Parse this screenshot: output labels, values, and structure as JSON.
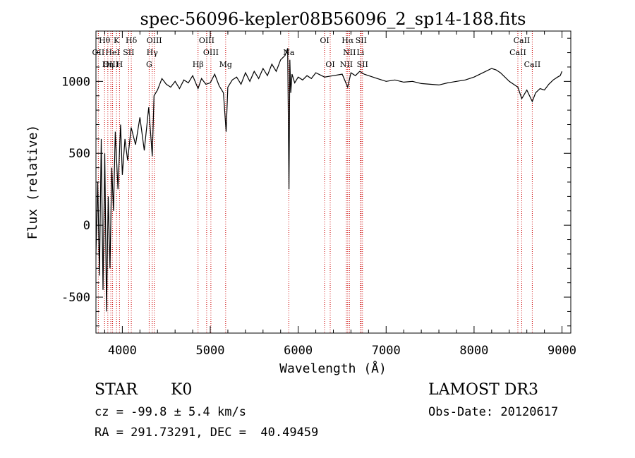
{
  "chart_data": {
    "type": "line",
    "title": "spec-56096-kepler08B56096_2_sp14-188.fits",
    "xlabel": "Wavelength (Å)",
    "ylabel": "Flux (relative)",
    "xlim": [
      3700,
      9100
    ],
    "ylim": [
      -750,
      1350
    ],
    "x_ticks": [
      4000,
      5000,
      6000,
      7000,
      8000,
      9000
    ],
    "x_tick_labels": [
      "4000",
      "5000",
      "6000",
      "7000",
      "8000",
      "9000"
    ],
    "y_ticks": [
      -500,
      0,
      500,
      1000
    ],
    "y_tick_labels": [
      "-500",
      "0",
      "500",
      "1000"
    ],
    "series": [
      {
        "name": "flux",
        "x": [
          3700,
          3720,
          3740,
          3760,
          3780,
          3800,
          3820,
          3840,
          3860,
          3880,
          3900,
          3920,
          3950,
          3980,
          4000,
          4030,
          4060,
          4100,
          4150,
          4200,
          4250,
          4300,
          4340,
          4360,
          4400,
          4450,
          4500,
          4550,
          4600,
          4650,
          4700,
          4750,
          4800,
          4861,
          4900,
          4950,
          5000,
          5050,
          5100,
          5150,
          5180,
          5200,
          5250,
          5300,
          5350,
          5400,
          5450,
          5500,
          5550,
          5600,
          5650,
          5700,
          5750,
          5800,
          5850,
          5880,
          5895,
          5905,
          5915,
          5930,
          5960,
          6000,
          6050,
          6100,
          6150,
          6200,
          6300,
          6400,
          6500,
          6563,
          6600,
          6650,
          6700,
          6750,
          6800,
          6900,
          7000,
          7100,
          7200,
          7300,
          7400,
          7500,
          7600,
          7700,
          7800,
          7900,
          8000,
          8100,
          8200,
          8250,
          8300,
          8400,
          8498,
          8542,
          8600,
          8662,
          8700,
          8750,
          8800,
          8850,
          8900,
          8950,
          8980,
          9000
        ],
        "y": [
          -200,
          300,
          -350,
          600,
          -450,
          500,
          -600,
          200,
          -300,
          400,
          100,
          650,
          250,
          700,
          350,
          600,
          450,
          680,
          560,
          750,
          520,
          820,
          480,
          900,
          940,
          1020,
          980,
          960,
          1000,
          950,
          1010,
          990,
          1040,
          950,
          1020,
          980,
          990,
          1050,
          970,
          920,
          650,
          960,
          1010,
          1030,
          980,
          1060,
          1000,
          1070,
          1020,
          1090,
          1040,
          1120,
          1070,
          1150,
          1180,
          1230,
          250,
          1150,
          920,
          1050,
          990,
          1030,
          1010,
          1040,
          1020,
          1060,
          1030,
          1040,
          1050,
          960,
          1060,
          1040,
          1070,
          1050,
          1040,
          1020,
          1000,
          1010,
          995,
          1000,
          985,
          980,
          975,
          990,
          1000,
          1010,
          1030,
          1060,
          1090,
          1080,
          1060,
          1000,
          960,
          880,
          940,
          860,
          920,
          950,
          940,
          980,
          1010,
          1030,
          1040,
          1070
        ]
      }
    ],
    "lines": [
      {
        "name": "Hθ",
        "x": 3798
      },
      {
        "name": "OII",
        "x": 3727
      },
      {
        "name": "OIII",
        "x": 3869
      },
      {
        "name": "Hη",
        "x": 3835
      },
      {
        "name": "K",
        "x": 3934
      },
      {
        "name": "H",
        "x": 3968
      },
      {
        "name": "HeI",
        "x": 3889
      },
      {
        "name": "SII",
        "x": 4072
      },
      {
        "name": "Hδ",
        "x": 4102
      },
      {
        "name": "OIII",
        "x": 4363
      },
      {
        "name": "Hγ",
        "x": 4340
      },
      {
        "name": "G",
        "x": 4305
      },
      {
        "name": "Hβ",
        "x": 4861
      },
      {
        "name": "OIII",
        "x": 4959
      },
      {
        "name": "OIII",
        "x": 5007
      },
      {
        "name": "Mg",
        "x": 5175
      },
      {
        "name": "Na",
        "x": 5893
      },
      {
        "name": "OI",
        "x": 6300
      },
      {
        "name": "OI",
        "x": 6364
      },
      {
        "name": "Hα",
        "x": 6563
      },
      {
        "name": "NII",
        "x": 6548
      },
      {
        "name": "NII",
        "x": 6583
      },
      {
        "name": "SII",
        "x": 6716
      },
      {
        "name": "SII",
        "x": 6731
      },
      {
        "name": "Li",
        "x": 6708
      },
      {
        "name": "CaII",
        "x": 8498
      },
      {
        "name": "CaII",
        "x": 8542
      },
      {
        "name": "CaII",
        "x": 8662
      }
    ],
    "line_labels": [
      {
        "text": "Hθ",
        "x": 3798,
        "row": 1
      },
      {
        "text": "K",
        "x": 3934,
        "row": 1
      },
      {
        "text": "Hδ",
        "x": 4102,
        "row": 1
      },
      {
        "text": "OIII",
        "x": 4363,
        "row": 1
      },
      {
        "text": "OIII",
        "x": 4959,
        "row": 1
      },
      {
        "text": "OI",
        "x": 6300,
        "row": 1
      },
      {
        "text": "Hα",
        "x": 6563,
        "row": 1
      },
      {
        "text": "SII",
        "x": 6716,
        "row": 1
      },
      {
        "text": "CaII",
        "x": 8542,
        "row": 1
      },
      {
        "text": "OII",
        "x": 3727,
        "row": 2
      },
      {
        "text": "HeI",
        "x": 3889,
        "row": 2
      },
      {
        "text": "SII",
        "x": 4072,
        "row": 2
      },
      {
        "text": "Hγ",
        "x": 4340,
        "row": 2
      },
      {
        "text": "OIII",
        "x": 5007,
        "row": 2
      },
      {
        "text": "NII",
        "x": 6583,
        "row": 2
      },
      {
        "text": "Li",
        "x": 6708,
        "row": 2
      },
      {
        "text": "CaII",
        "x": 8498,
        "row": 2
      },
      {
        "text": "Na",
        "x": 5893,
        "row": 2
      },
      {
        "text": "OIII",
        "x": 3869,
        "row": 3
      },
      {
        "text": "Hη",
        "x": 3835,
        "row": 3
      },
      {
        "text": "H",
        "x": 3968,
        "row": 3
      },
      {
        "text": "G",
        "x": 4305,
        "row": 3
      },
      {
        "text": "Hβ",
        "x": 4861,
        "row": 3
      },
      {
        "text": "Mg",
        "x": 5175,
        "row": 3
      },
      {
        "text": "OI",
        "x": 6364,
        "row": 3
      },
      {
        "text": "NII",
        "x": 6548,
        "row": 3
      },
      {
        "text": "SII",
        "x": 6731,
        "row": 3
      },
      {
        "text": "CaII",
        "x": 8662,
        "row": 3
      }
    ]
  },
  "info": {
    "class_label": "STAR",
    "subclass": "K0",
    "survey": "LAMOST DR3",
    "cz": "cz = -99.8 ± 5.4 km/s",
    "obs_date": "Obs-Date: 20120617",
    "coords": "RA = 291.73291, DEC =  40.49459"
  },
  "colors": {
    "axis": "#000000",
    "line_marker": "#cc0000",
    "spectrum": "#000000"
  }
}
